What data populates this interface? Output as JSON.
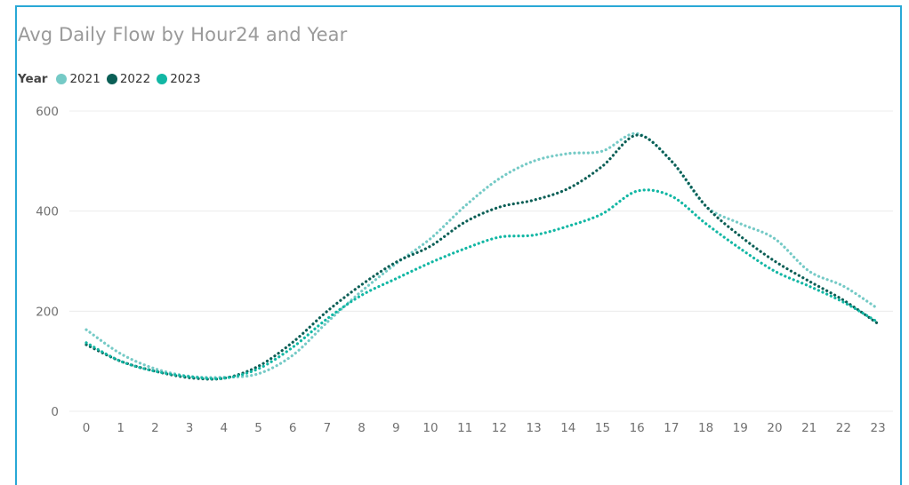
{
  "chart_data": {
    "type": "line",
    "title": "Avg Daily Flow by Hour24 and Year",
    "legend_title": "Year",
    "legend_position": "top-left",
    "x": [
      0,
      1,
      2,
      3,
      4,
      5,
      6,
      7,
      8,
      9,
      10,
      11,
      12,
      13,
      14,
      15,
      16,
      17,
      18,
      19,
      20,
      21,
      22,
      23
    ],
    "ylim": [
      0,
      600
    ],
    "yticks": [
      0,
      200,
      400,
      600
    ],
    "grid": true,
    "line_style": "dotted",
    "series": [
      {
        "name": "2021",
        "color": "#75cac6",
        "values": [
          163,
          115,
          85,
          70,
          68,
          75,
          112,
          178,
          240,
          295,
          345,
          410,
          465,
          500,
          515,
          520,
          555,
          500,
          410,
          375,
          345,
          280,
          250,
          205
        ]
      },
      {
        "name": "2022",
        "color": "#0b5f56",
        "values": [
          133,
          100,
          80,
          67,
          66,
          90,
          138,
          200,
          253,
          298,
          330,
          378,
          408,
          422,
          445,
          490,
          552,
          500,
          410,
          350,
          300,
          260,
          222,
          175
        ]
      },
      {
        "name": "2023",
        "color": "#12b7a4",
        "values": [
          137,
          100,
          80,
          69,
          66,
          85,
          128,
          185,
          232,
          265,
          297,
          325,
          348,
          352,
          370,
          395,
          440,
          430,
          375,
          325,
          280,
          250,
          218,
          178
        ]
      }
    ]
  }
}
